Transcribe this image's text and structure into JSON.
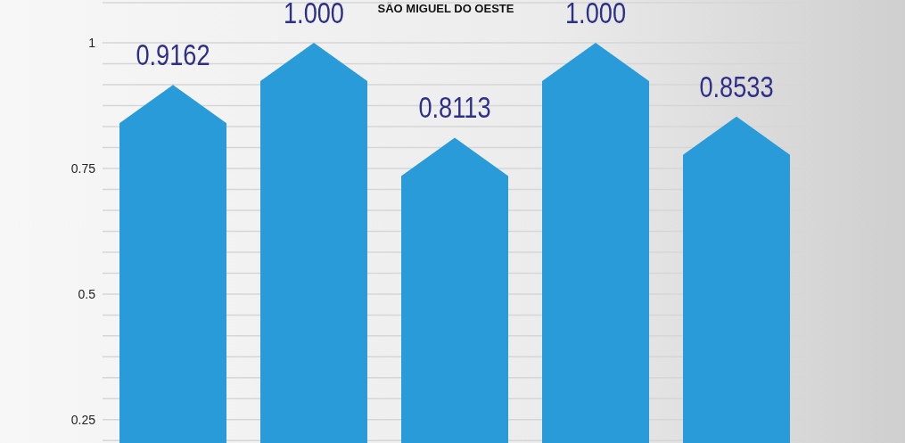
{
  "chart_data": {
    "type": "bar",
    "title": "SÃO MIGUEL DO OESTE",
    "categories": [
      null,
      null,
      null,
      null,
      null
    ],
    "values": [
      0.9162,
      1,
      0.8113,
      1,
      0.8533
    ],
    "value_labels": [
      "0.9162",
      "1.000",
      "0.8113",
      "1.000",
      "0.8533"
    ],
    "color": "#2a9bd9",
    "ylim": [
      0.2,
      1.08
    ],
    "yticks": [
      {
        "value": 0.2083,
        "label": null
      },
      0.25,
      {
        "value": 0.2917,
        "label": null
      },
      {
        "value": 0.3333,
        "label": null
      },
      {
        "value": 0.375,
        "label": null
      },
      {
        "value": 0.4167,
        "label": null
      },
      {
        "value": 0.4583,
        "label": null
      },
      0.5,
      {
        "value": 0.5417,
        "label": null
      },
      {
        "value": 0.5833,
        "label": null
      },
      {
        "value": 0.625,
        "label": null
      },
      {
        "value": 0.6667,
        "label": null
      },
      {
        "value": 0.7083,
        "label": null
      },
      0.75,
      {
        "value": 0.7917,
        "label": null
      },
      {
        "value": 0.8333,
        "label": null
      },
      {
        "value": 0.875,
        "label": null
      },
      {
        "value": 0.9167,
        "label": null
      },
      {
        "value": 0.9583,
        "label": null
      },
      1
    ],
    "grid": "y"
  }
}
